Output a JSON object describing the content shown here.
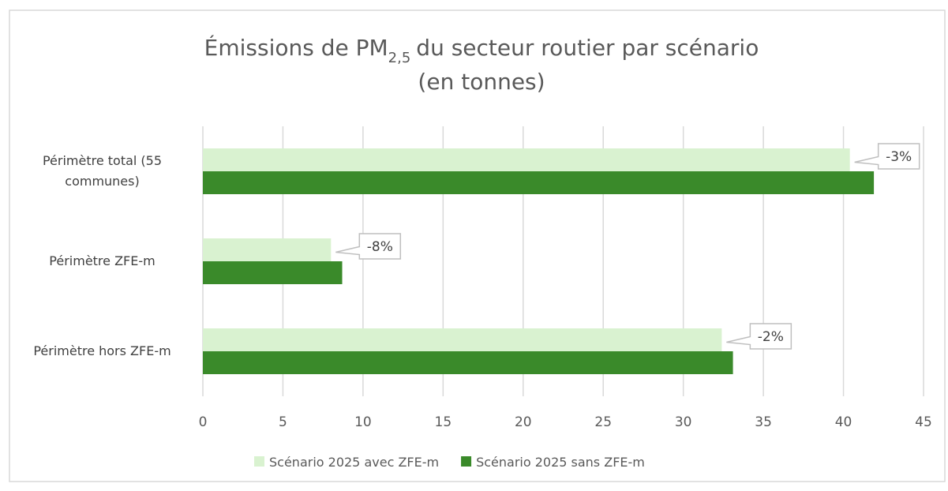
{
  "chart_data": {
    "type": "bar",
    "orientation": "horizontal",
    "title": {
      "before": "Émissions de PM",
      "subscript": "2,5",
      "after": "du secteur routier par scénario",
      "line2": "(en tonnes)"
    },
    "categories": [
      "Périmètre total (55 communes)",
      "Périmètre ZFE-m",
      "Périmètre hors ZFE-m"
    ],
    "series": [
      {
        "name": "Scénario 2025 avec ZFE-m",
        "color": "#d9f2d0",
        "values": [
          40.4,
          8.0,
          32.4
        ]
      },
      {
        "name": "Scénario 2025 sans ZFE-m",
        "color": "#3a8a2a",
        "values": [
          41.9,
          8.7,
          33.1
        ]
      }
    ],
    "callouts": [
      "-3%",
      "-8%",
      "-2%"
    ],
    "xlim": [
      0,
      45
    ],
    "xticks": [
      0,
      5,
      10,
      15,
      20,
      25,
      30,
      35,
      40,
      45
    ],
    "grid": true,
    "legend": "bottom"
  }
}
